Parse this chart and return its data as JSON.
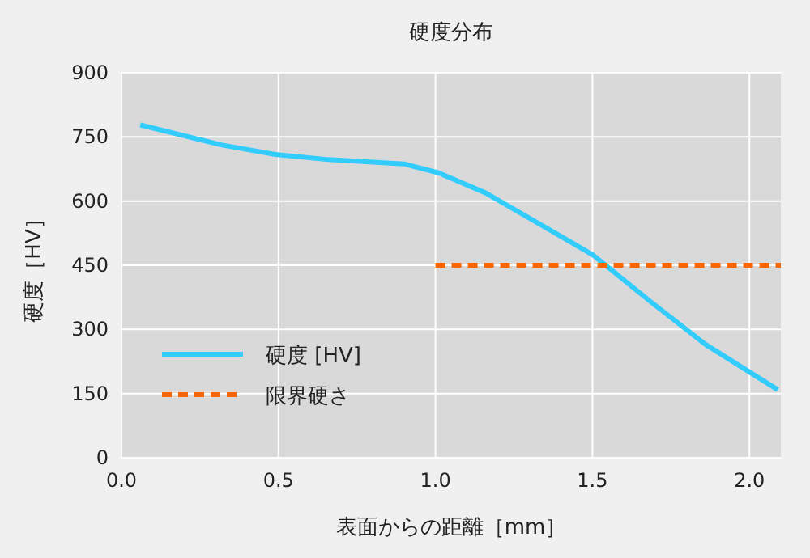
{
  "chart_data": {
    "type": "line",
    "title": "硬度分布",
    "xlabel": "表面からの距離［mm］",
    "ylabel": "硬度［HV］",
    "xlim": [
      0,
      2.1
    ],
    "xticks": [
      {
        "value": 0,
        "label": "0.0"
      },
      {
        "value": 0.5,
        "label": "0.5"
      },
      {
        "value": 1,
        "label": "1.0"
      },
      {
        "value": 1.5,
        "label": "1.5"
      },
      {
        "value": 2,
        "label": "2.0"
      }
    ],
    "ylim": [
      0,
      900
    ],
    "yticks": [
      0,
      150,
      300,
      450,
      600,
      750,
      900
    ],
    "grid": true,
    "legend": "bottom left",
    "series": [
      {
        "name": "硬度 [HV]",
        "color": "#33ccff",
        "line_style": "solid",
        "x": [
          0.06,
          0.32,
          0.49,
          0.66,
          0.9,
          1.01,
          1.16,
          1.33,
          1.5,
          1.69,
          1.86,
          2.09
        ],
        "values": [
          778,
          731,
          709,
          697,
          687,
          666,
          619,
          547,
          475,
          362,
          265,
          159
        ]
      },
      {
        "name": "限界硬さ",
        "color": "#ff6600",
        "line_style": "dashed",
        "x": [
          1.0,
          2.1
        ],
        "values": [
          450,
          450
        ]
      }
    ]
  }
}
